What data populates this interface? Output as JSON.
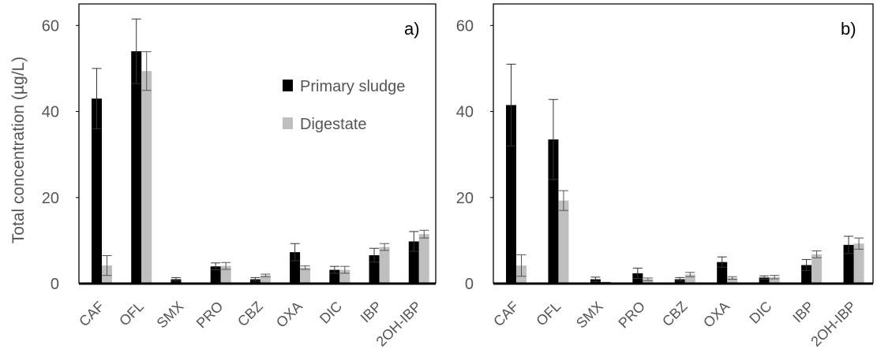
{
  "chart_data": [
    {
      "type": "bar",
      "panel_label": "a)",
      "ylabel": "Total concentration (µg/L)",
      "ylim": [
        0,
        65
      ],
      "yticks": [
        "0",
        "20",
        "40",
        "60"
      ],
      "categories": [
        "CAF",
        "OFL",
        "SMX",
        "PRO",
        "CBZ",
        "OXA",
        "DIC",
        "IBP",
        "2OH-IBP"
      ],
      "legend_position": "top-right",
      "series": [
        {
          "name": "Primary sludge",
          "color": "#000000",
          "values": [
            43,
            54,
            1,
            4,
            1,
            7.3,
            3.2,
            6.6,
            9.8
          ],
          "errors": [
            7,
            7.5,
            0.4,
            0.8,
            0.4,
            2,
            0.8,
            1.6,
            2.3
          ]
        },
        {
          "name": "Digestate",
          "color": "#bfbfbf",
          "values": [
            4.2,
            49.4,
            0,
            4.1,
            1.9,
            3.7,
            3.2,
            8.5,
            11.5
          ],
          "errors": [
            2.3,
            4.5,
            0,
            0.8,
            0.3,
            0.4,
            0.8,
            0.8,
            0.9
          ]
        }
      ]
    },
    {
      "type": "bar",
      "panel_label": "b)",
      "ylabel": "",
      "ylim": [
        0,
        65
      ],
      "yticks": [
        "0",
        "20",
        "40",
        "60"
      ],
      "categories": [
        "CAF",
        "OFL",
        "SMX",
        "PRO",
        "CBZ",
        "OXA",
        "DIC",
        "IBP",
        "2OH-IBP"
      ],
      "series": [
        {
          "name": "Primary sludge",
          "color": "#000000",
          "values": [
            41.5,
            33.5,
            1,
            2.4,
            1,
            5,
            1.4,
            4.3,
            9
          ],
          "errors": [
            9.5,
            9.3,
            0.5,
            1.2,
            0.4,
            1.2,
            0.4,
            1.3,
            2
          ]
        },
        {
          "name": "Digestate",
          "color": "#bfbfbf",
          "values": [
            4.2,
            19.3,
            0.2,
            1,
            2.1,
            1.3,
            1.5,
            6.8,
            9.3
          ],
          "errors": [
            2.5,
            2.3,
            0.1,
            0.3,
            0.5,
            0.3,
            0.4,
            0.8,
            1.3
          ]
        }
      ]
    }
  ]
}
